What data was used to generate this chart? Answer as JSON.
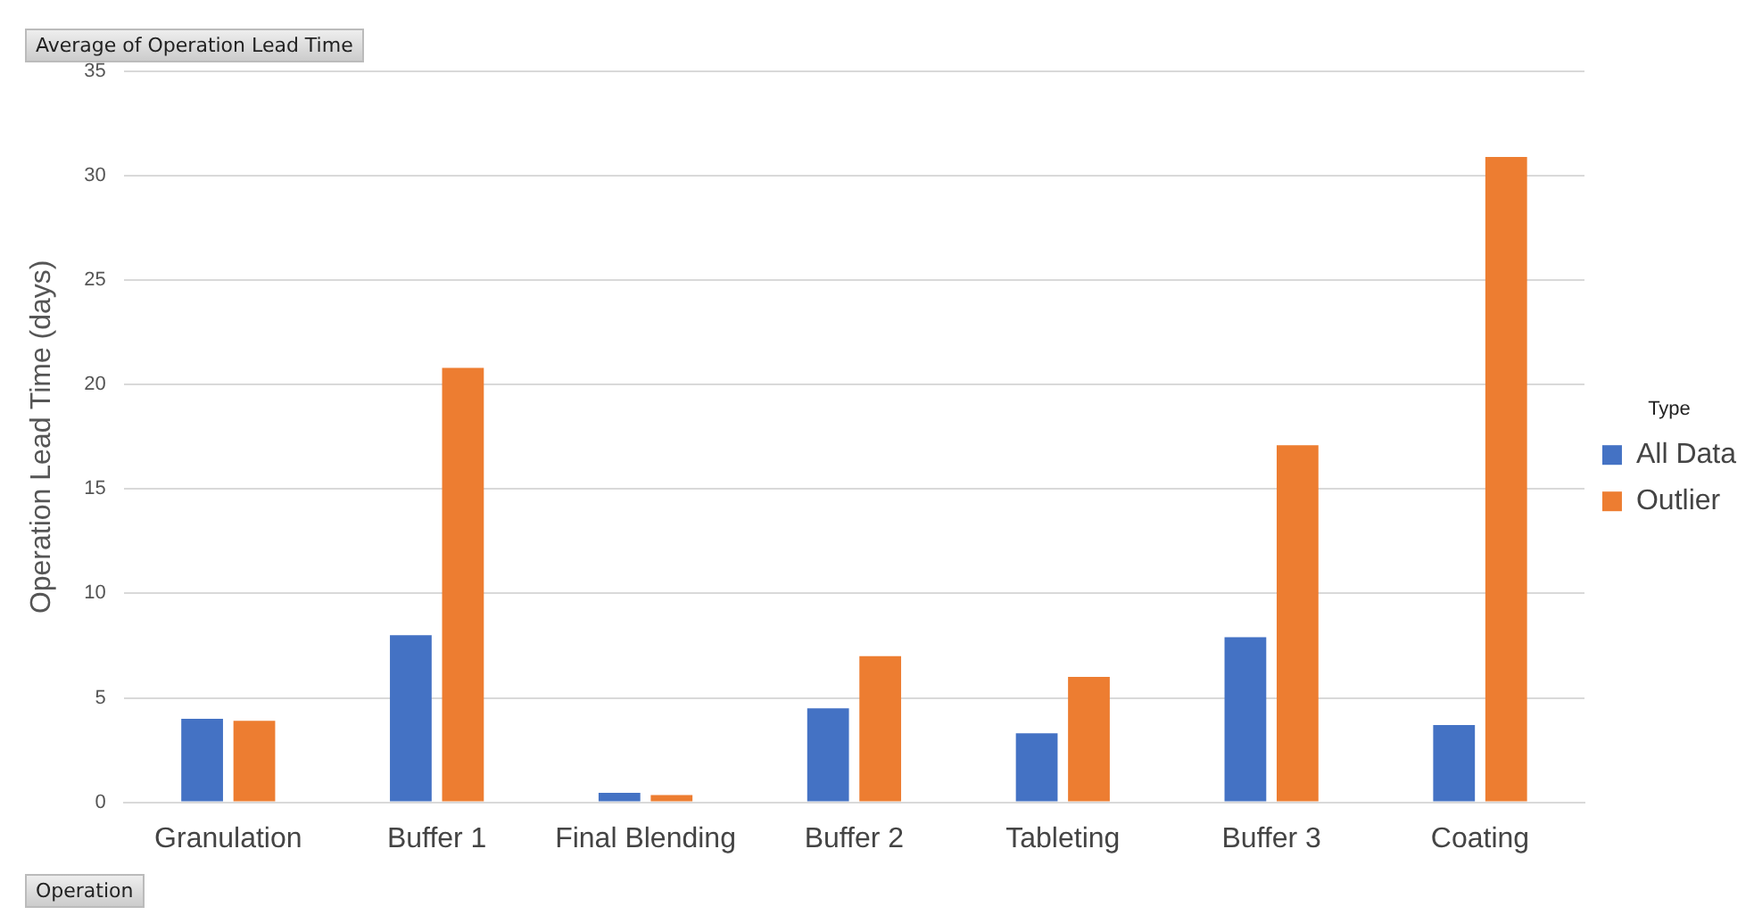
{
  "chart_data": {
    "type": "bar",
    "ylabel": "Operation Lead Time (days)",
    "legend_title": "Type",
    "annotations": [
      "Average of Operation Lead Time",
      "Operation"
    ],
    "categories": [
      "Granulation",
      "Buffer 1",
      "Final Blending",
      "Buffer 2",
      "Tableting",
      "Buffer 3",
      "Coating"
    ],
    "series": [
      {
        "name": "All Data",
        "color": "#4472c4",
        "values": [
          4.0,
          8.0,
          0.45,
          4.5,
          3.3,
          7.9,
          3.7
        ]
      },
      {
        "name": "Outlier",
        "color": "#ed7d31",
        "values": [
          3.9,
          20.8,
          0.35,
          7.0,
          6.0,
          17.1,
          30.9
        ]
      }
    ],
    "ylim": [
      0,
      35
    ],
    "yticks": [
      0,
      5,
      10,
      15,
      20,
      25,
      30,
      35
    ],
    "grid": "y",
    "legend": "right"
  }
}
